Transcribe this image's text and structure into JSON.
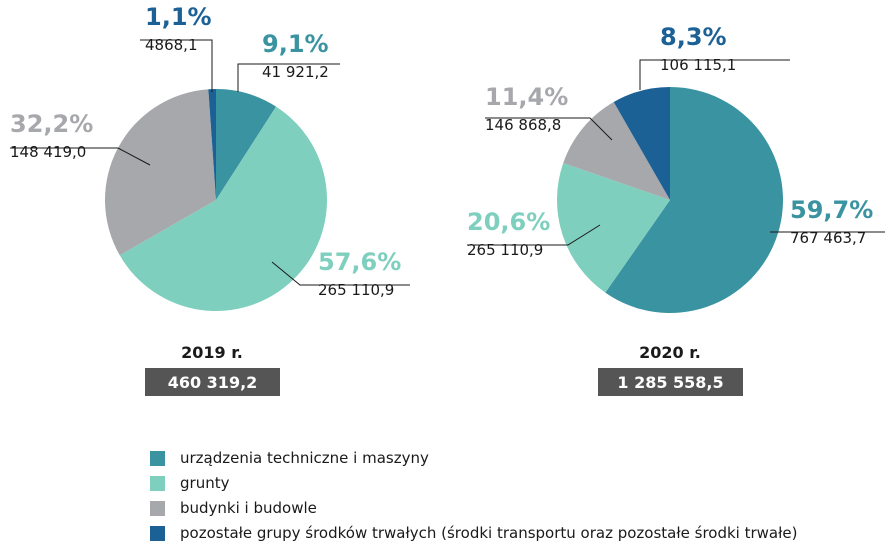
{
  "legend": {
    "categories": [
      "urządzenia techniczne i maszyny",
      "grunty",
      "budynki i budowle",
      "pozostałe grupy środków trwałych (środki transportu oraz pozostałe środki trwałe)"
    ],
    "colors": [
      "#3a93a0",
      "#7fcfbf",
      "#a7a8ac",
      "#1c6196"
    ]
  },
  "chart_data": [
    {
      "type": "pie",
      "title": "2019 r.",
      "total_label": "460 319,2",
      "values": [
        9.1,
        57.6,
        32.2,
        1.1
      ],
      "value_labels": [
        "9,1%",
        "57,6%",
        "32,2%",
        "1,1%"
      ],
      "amount_labels": [
        "41 921,2",
        "265 110,9",
        "148 419,0",
        "4868,1"
      ]
    },
    {
      "type": "pie",
      "title": "2020 r.",
      "total_label": "1 285 558,5",
      "values": [
        59.7,
        20.6,
        11.4,
        8.3
      ],
      "value_labels": [
        "59,7%",
        "20,6%",
        "11,4%",
        "8,3%"
      ],
      "amount_labels": [
        "767 463,7",
        "265 110,9",
        "146 868,8",
        "106 115,1"
      ]
    }
  ]
}
